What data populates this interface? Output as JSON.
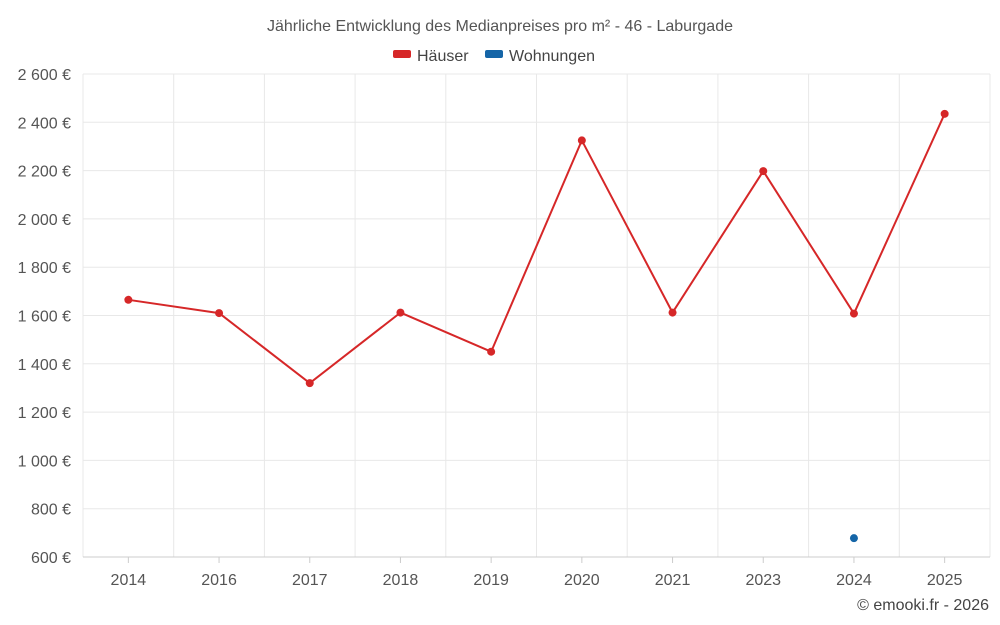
{
  "chart_data": {
    "type": "line",
    "title": "Jährliche Entwicklung des Medianpreises pro m² - 46 - Laburgade",
    "xlabel": "",
    "ylabel": "",
    "categories": [
      "2014",
      "2016",
      "2017",
      "2018",
      "2019",
      "2020",
      "2021",
      "2023",
      "2024",
      "2025"
    ],
    "series": [
      {
        "name": "Häuser",
        "color": "#d62728",
        "values": [
          1665,
          1610,
          1320,
          1612,
          1450,
          2325,
          1612,
          2198,
          1608,
          2435
        ]
      },
      {
        "name": "Wohnungen",
        "color": "#1565a7",
        "values": [
          null,
          null,
          null,
          null,
          null,
          null,
          null,
          null,
          678,
          null
        ]
      }
    ],
    "ylim": [
      600,
      2600
    ],
    "yticks": [
      600,
      800,
      1000,
      1200,
      1400,
      1600,
      1800,
      2000,
      2200,
      2400,
      2600
    ],
    "ytick_labels": [
      "600 €",
      "800 €",
      "1 000 €",
      "1 200 €",
      "1 400 €",
      "1 600 €",
      "1 800 €",
      "2 000 €",
      "2 200 €",
      "2 400 €",
      "2 600 €"
    ],
    "grid": true,
    "legend_position": "top-center"
  },
  "credit": "© emooki.fr - 2026"
}
